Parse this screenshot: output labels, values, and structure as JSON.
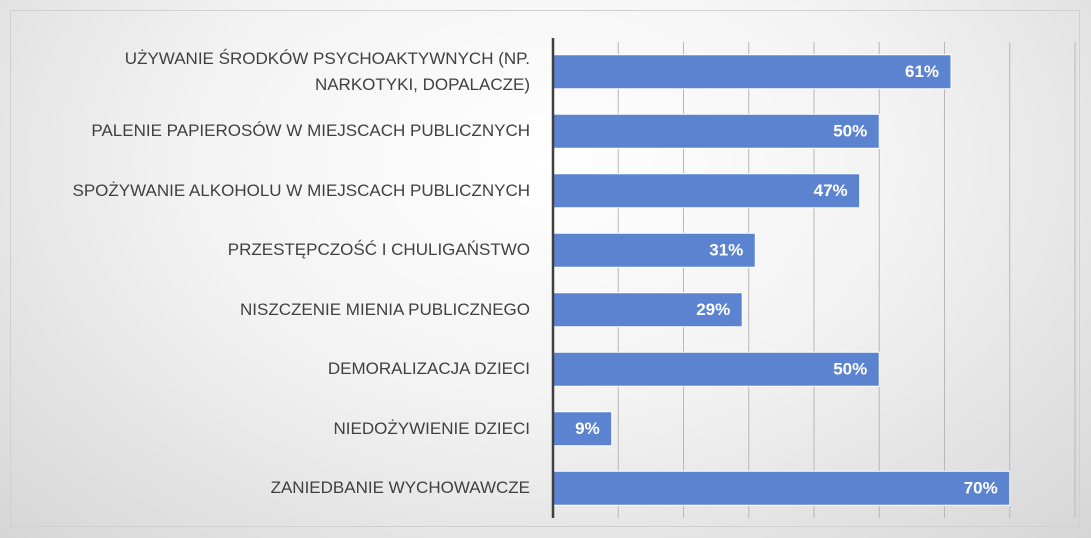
{
  "chart_data": {
    "type": "bar",
    "orientation": "horizontal",
    "categories": [
      "UŻYWANIE ŚRODKÓW PSYCHOAKTYWNYCH (NP. NARKOTYKI, DOPALACZE)",
      "PALENIE PAPIEROSÓW W MIEJSCACH PUBLICZNYCH",
      "SPOŻYWANIE ALKOHOLU W MIEJSCACH PUBLICZNYCH",
      "PRZESTĘPCZOŚĆ I CHULIGAŃSTWO",
      "NISZCZENIE MIENIA PUBLICZNEGO",
      "DEMORALIZACJA DZIECI",
      "NIEDOŻYWIENIE DZIECI",
      "ZANIEDBANIE WYCHOWAWCZE"
    ],
    "values": [
      61,
      50,
      47,
      31,
      29,
      50,
      9,
      70
    ],
    "value_labels": [
      "61%",
      "50%",
      "47%",
      "31%",
      "29%",
      "50%",
      "9%",
      "70%"
    ],
    "color": "#5b83d0",
    "xlim": [
      0,
      80
    ],
    "xticks": [
      0,
      10,
      20,
      30,
      40,
      50,
      60,
      70,
      80
    ],
    "grid": true
  }
}
